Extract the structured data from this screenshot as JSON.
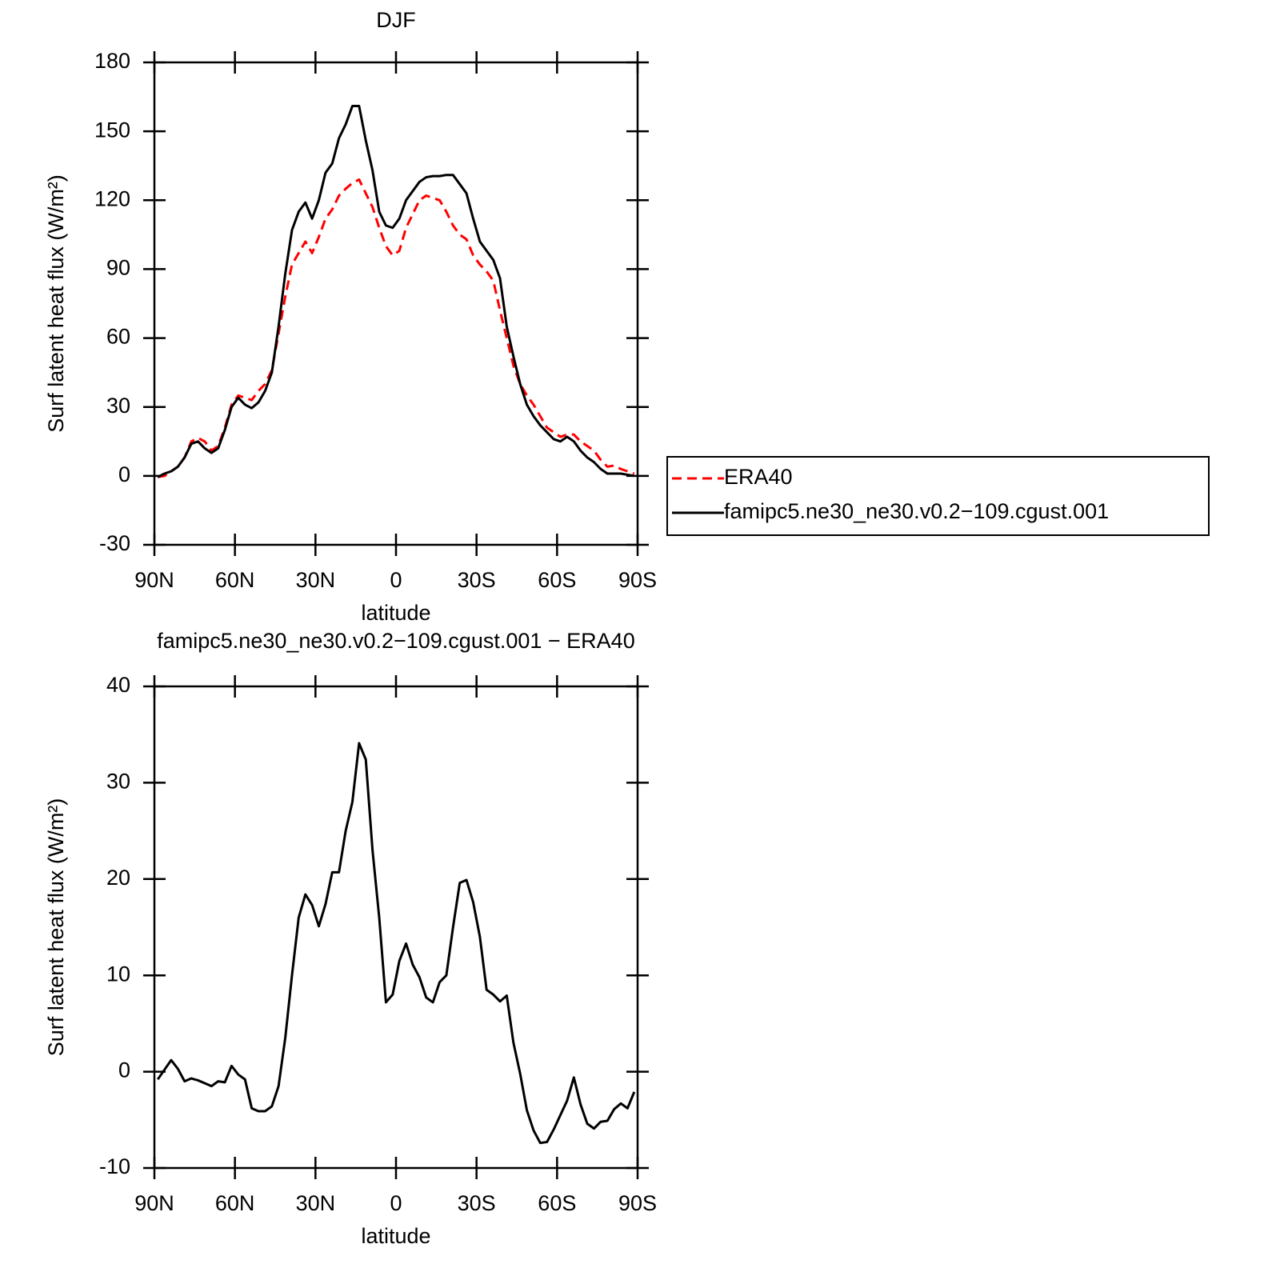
{
  "chart_data": [
    {
      "type": "line",
      "title": "DJF",
      "x_label": "latitude",
      "y_label": "Surf latent heat flux (W/m²)",
      "x": [
        88.75,
        86.25,
        83.75,
        81.25,
        78.75,
        76.25,
        73.75,
        71.25,
        68.75,
        66.25,
        63.75,
        61.25,
        58.75,
        56.25,
        53.75,
        51.25,
        48.75,
        46.25,
        43.75,
        41.25,
        38.75,
        36.25,
        33.75,
        31.25,
        28.75,
        26.25,
        23.75,
        21.25,
        18.75,
        16.25,
        13.75,
        11.25,
        8.75,
        6.25,
        3.75,
        1.25,
        -1.25,
        -3.75,
        -6.25,
        -8.75,
        -11.25,
        -13.75,
        -16.25,
        -18.75,
        -21.25,
        -23.75,
        -26.25,
        -28.75,
        -31.25,
        -33.75,
        -36.25,
        -38.75,
        -41.25,
        -43.75,
        -46.25,
        -48.75,
        -51.25,
        -53.75,
        -56.25,
        -58.75,
        -61.25,
        -63.75,
        -66.25,
        -68.75,
        -71.25,
        -73.75,
        -76.25,
        -78.75,
        -81.25,
        -83.75,
        -86.25,
        -88.75
      ],
      "xlim": [
        90,
        -90
      ],
      "xticks": [
        {
          "value": 90,
          "label": "90N"
        },
        {
          "value": 60,
          "label": "60N"
        },
        {
          "value": 30,
          "label": "30N"
        },
        0,
        {
          "value": -30,
          "label": "30S"
        },
        {
          "value": -60,
          "label": "60S"
        },
        {
          "value": -90,
          "label": "90S"
        }
      ],
      "ylim": [
        -30,
        180
      ],
      "yticks": [
        -30,
        0,
        30,
        60,
        90,
        120,
        150,
        180
      ],
      "legend": "right",
      "series": [
        {
          "name": "ERA40",
          "color": "#ff0000",
          "dashed": true,
          "values": [
            -0.5,
            0,
            2,
            4,
            8,
            15,
            16.5,
            15,
            11,
            13,
            21,
            31,
            35,
            34,
            33,
            37,
            40,
            46,
            62,
            78,
            92,
            97,
            102,
            97,
            104,
            112,
            116,
            122,
            125,
            127.5,
            129,
            123,
            117,
            108,
            100,
            96,
            98,
            108,
            114,
            120,
            122,
            121,
            120,
            115,
            109,
            105,
            103,
            96,
            92,
            89,
            85,
            72,
            60,
            48,
            40,
            35,
            31,
            26,
            21,
            19,
            17,
            18,
            18,
            15,
            13,
            11,
            7,
            4,
            4.5,
            3,
            2,
            1
          ]
        },
        {
          "name": "famipc5.ne30_ne30.v0.2−109.cgust.001",
          "color": "#000000",
          "dashed": false,
          "values": [
            -0.5,
            1,
            2,
            4,
            8,
            14,
            15,
            12,
            10,
            12,
            20,
            30,
            34,
            31,
            29.5,
            32,
            37,
            45,
            65,
            88,
            107,
            115,
            119,
            112,
            120,
            132,
            136,
            147,
            153,
            161,
            161,
            146,
            133,
            115,
            109,
            108,
            112,
            120,
            124,
            128,
            130,
            130.5,
            130.5,
            131,
            131,
            127,
            123,
            112,
            102,
            98,
            94,
            86,
            65,
            52,
            40,
            31,
            26,
            22,
            19,
            16,
            15,
            17,
            15,
            11,
            8,
            6,
            3,
            1,
            1,
            1,
            0.5,
            0
          ]
        }
      ]
    },
    {
      "type": "line",
      "title": "famipc5.ne30_ne30.v0.2−109.cgust.001 − ERA40",
      "x_label": "latitude",
      "y_label": "Surf latent heat flux (W/m²)",
      "x": [
        88.75,
        86.25,
        83.75,
        81.25,
        78.75,
        76.25,
        73.75,
        71.25,
        68.75,
        66.25,
        63.75,
        61.25,
        58.75,
        56.25,
        53.75,
        51.25,
        48.75,
        46.25,
        43.75,
        41.25,
        38.75,
        36.25,
        33.75,
        31.25,
        28.75,
        26.25,
        23.75,
        21.25,
        18.75,
        16.25,
        13.75,
        11.25,
        8.75,
        6.25,
        3.75,
        1.25,
        -1.25,
        -3.75,
        -6.25,
        -8.75,
        -11.25,
        -13.75,
        -16.25,
        -18.75,
        -21.25,
        -23.75,
        -26.25,
        -28.75,
        -31.25,
        -33.75,
        -36.25,
        -38.75,
        -41.25,
        -43.75,
        -46.25,
        -48.75,
        -51.25,
        -53.75,
        -56.25,
        -58.75,
        -61.25,
        -63.75,
        -66.25,
        -68.75,
        -71.25,
        -73.75,
        -76.25,
        -78.75,
        -81.25,
        -83.75,
        -86.25,
        -88.75
      ],
      "xlim": [
        90,
        -90
      ],
      "xticks": [
        {
          "value": 90,
          "label": "90N"
        },
        {
          "value": 60,
          "label": "60N"
        },
        {
          "value": 30,
          "label": "30N"
        },
        0,
        {
          "value": -30,
          "label": "30S"
        },
        {
          "value": -60,
          "label": "60S"
        },
        {
          "value": -90,
          "label": "90S"
        }
      ],
      "ylim": [
        -10,
        40
      ],
      "yticks": [
        -10,
        0,
        10,
        20,
        30,
        40
      ],
      "color": "#000000",
      "values": [
        -0.8,
        0.2,
        1.2,
        0.3,
        -1.0,
        -0.7,
        -0.9,
        -1.2,
        -1.5,
        -1.0,
        -1.1,
        0.6,
        -0.3,
        -0.8,
        -3.8,
        -4.1,
        -4.1,
        -3.6,
        -1.5,
        3.5,
        10,
        16,
        18.4,
        17.3,
        15.1,
        17.4,
        20.7,
        20.7,
        25,
        28,
        34.1,
        32.4,
        23,
        16,
        7.2,
        8,
        11.5,
        13.3,
        11.1,
        9.8,
        7.7,
        7.2,
        9.3,
        10,
        15,
        19.6,
        19.9,
        17.6,
        14,
        8.5,
        8,
        7.3,
        7.9,
        3,
        -0.2,
        -4,
        -6.1,
        -7.4,
        -7.3,
        -6,
        -4.5,
        -3,
        -0.6,
        -3.4,
        -5.4,
        -5.9,
        -5.2,
        -5.1,
        -3.9,
        -3.3,
        -3.8,
        -2.1
      ]
    }
  ]
}
